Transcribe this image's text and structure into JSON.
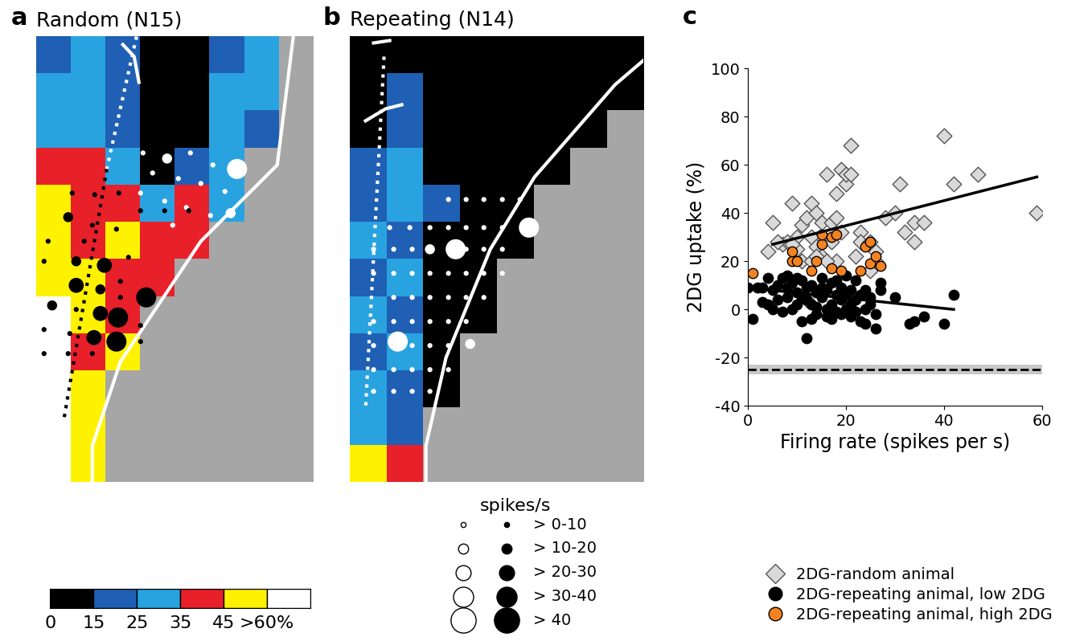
{
  "map_panels": [
    {
      "label": "a",
      "title": "Random (N15)",
      "xlim": [
        0,
        345
      ],
      "ylim": [
        555,
        0
      ],
      "tick_labels": false,
      "cells": [
        [
          20,
          30,
          20,
          5,
          5,
          20,
          25,
          null
        ],
        [
          25,
          30,
          20,
          5,
          5,
          25,
          30,
          null
        ],
        [
          30,
          25,
          20,
          5,
          5,
          30,
          20,
          null
        ],
        [
          40,
          35,
          25,
          10,
          20,
          30,
          null,
          null
        ],
        [
          45,
          40,
          35,
          30,
          35,
          30,
          null,
          null
        ],
        [
          50,
          40,
          45,
          40,
          35,
          null,
          null,
          null
        ],
        [
          55,
          45,
          40,
          38,
          null,
          null,
          null,
          null
        ],
        [
          60,
          45,
          40,
          null,
          null,
          null,
          null,
          null
        ],
        [
          65,
          40,
          45,
          null,
          null,
          null,
          null,
          null
        ],
        [
          60,
          50,
          null,
          null,
          null,
          null,
          null,
          null
        ],
        [
          65,
          45,
          null,
          null,
          null,
          null,
          null,
          null
        ],
        [
          70,
          45,
          null,
          null,
          null,
          null,
          null,
          null
        ]
      ],
      "dots_white": [
        [
          133,
          145,
          1
        ],
        [
          163,
          152,
          2
        ],
        [
          192,
          145,
          1
        ],
        [
          220,
          160,
          1
        ],
        [
          250,
          165,
          4
        ],
        [
          145,
          170,
          1
        ],
        [
          177,
          177,
          1
        ],
        [
          205,
          183,
          1
        ],
        [
          235,
          193,
          1
        ],
        [
          130,
          195,
          1
        ],
        [
          160,
          205,
          1
        ],
        [
          187,
          213,
          1
        ],
        [
          217,
          223,
          1
        ],
        [
          243,
          223,
          1
        ],
        [
          170,
          235,
          1
        ],
        [
          242,
          220,
          2
        ]
      ],
      "dots_black": [
        [
          45,
          195,
          1
        ],
        [
          73,
          197,
          1
        ],
        [
          103,
          195,
          1
        ],
        [
          130,
          217,
          1
        ],
        [
          160,
          217,
          1
        ],
        [
          190,
          217,
          1
        ],
        [
          40,
          225,
          2
        ],
        [
          70,
          235,
          1
        ],
        [
          100,
          240,
          1
        ],
        [
          15,
          255,
          1
        ],
        [
          60,
          255,
          1
        ],
        [
          85,
          285,
          3
        ],
        [
          115,
          275,
          1
        ],
        [
          10,
          280,
          1
        ],
        [
          50,
          280,
          2
        ],
        [
          50,
          310,
          3
        ],
        [
          80,
          315,
          2
        ],
        [
          105,
          305,
          1
        ],
        [
          20,
          335,
          2
        ],
        [
          50,
          340,
          1
        ],
        [
          80,
          345,
          3
        ],
        [
          105,
          325,
          1
        ],
        [
          137,
          325,
          4
        ],
        [
          10,
          365,
          1
        ],
        [
          42,
          370,
          1
        ],
        [
          72,
          375,
          3
        ],
        [
          102,
          350,
          4
        ],
        [
          100,
          380,
          4
        ],
        [
          130,
          360,
          1
        ],
        [
          10,
          395,
          1
        ],
        [
          40,
          395,
          1
        ],
        [
          70,
          395,
          1
        ],
        [
          130,
          380,
          1
        ]
      ],
      "borders": [
        {
          "points": [
            [
              320,
              0
            ],
            [
              300,
              160
            ],
            [
              205,
              255
            ],
            [
              105,
              405
            ],
            [
              70,
              510
            ],
            [
              70,
              555
            ]
          ],
          "color": "#ffffff",
          "line_style": "solid"
        },
        {
          "points": [
            [
              125,
              0
            ],
            [
              88,
              165
            ]
          ],
          "color": "#ffffff",
          "line_style": "dotted"
        },
        {
          "points": [
            [
              88,
              165
            ],
            [
              35,
              475
            ]
          ],
          "color": "#000000",
          "line_style": "dotted"
        },
        {
          "points": [
            [
              108,
              10
            ],
            [
              122,
              25
            ],
            [
              128,
              57
            ]
          ],
          "color": "#ffffff",
          "line_style": "solid"
        }
      ]
    },
    {
      "label": "b",
      "title": "Repeating (N14)",
      "xlim": [
        0,
        365
      ],
      "ylim": [
        555,
        0
      ],
      "tick_labels": false,
      "cells": [
        [
          5,
          5,
          5,
          5,
          5,
          5,
          5,
          5
        ],
        [
          5,
          20,
          5,
          5,
          5,
          5,
          5,
          5
        ],
        [
          5,
          20,
          5,
          5,
          5,
          5,
          5,
          null
        ],
        [
          20,
          25,
          5,
          5,
          5,
          5,
          null,
          null
        ],
        [
          20,
          28,
          20,
          5,
          5,
          null,
          null,
          null
        ],
        [
          25,
          20,
          5,
          5,
          5,
          null,
          null,
          null
        ],
        [
          20,
          28,
          5,
          5,
          null,
          null,
          null,
          null
        ],
        [
          25,
          20,
          5,
          5,
          null,
          null,
          null,
          null
        ],
        [
          20,
          25,
          5,
          null,
          null,
          null,
          null,
          null
        ],
        [
          28,
          20,
          5,
          null,
          null,
          null,
          null,
          null
        ],
        [
          30,
          20,
          null,
          null,
          null,
          null,
          null,
          null
        ],
        [
          45,
          40,
          null,
          null,
          null,
          null,
          null,
          null
        ]
      ],
      "dots_white": [
        [
          123,
          203,
          1
        ],
        [
          145,
          203,
          1
        ],
        [
          167,
          203,
          1
        ],
        [
          190,
          203,
          1
        ],
        [
          212,
          203,
          1
        ],
        [
          50,
          238,
          1
        ],
        [
          75,
          238,
          1
        ],
        [
          100,
          238,
          1
        ],
        [
          123,
          238,
          1
        ],
        [
          145,
          238,
          1
        ],
        [
          167,
          238,
          1
        ],
        [
          190,
          238,
          1
        ],
        [
          223,
          238,
          4
        ],
        [
          30,
          265,
          1
        ],
        [
          55,
          265,
          1
        ],
        [
          78,
          265,
          1
        ],
        [
          100,
          265,
          2
        ],
        [
          132,
          265,
          4
        ],
        [
          145,
          265,
          1
        ],
        [
          167,
          265,
          1
        ],
        [
          190,
          265,
          1
        ],
        [
          30,
          295,
          1
        ],
        [
          55,
          295,
          1
        ],
        [
          78,
          295,
          1
        ],
        [
          100,
          295,
          1
        ],
        [
          123,
          295,
          1
        ],
        [
          145,
          295,
          1
        ],
        [
          167,
          295,
          1
        ],
        [
          190,
          295,
          1
        ],
        [
          55,
          325,
          1
        ],
        [
          78,
          325,
          1
        ],
        [
          100,
          325,
          1
        ],
        [
          123,
          325,
          1
        ],
        [
          145,
          325,
          1
        ],
        [
          167,
          325,
          1
        ],
        [
          30,
          355,
          1
        ],
        [
          55,
          355,
          1
        ],
        [
          78,
          355,
          1
        ],
        [
          100,
          355,
          1
        ],
        [
          123,
          355,
          1
        ],
        [
          145,
          355,
          1
        ],
        [
          30,
          385,
          1
        ],
        [
          60,
          380,
          4
        ],
        [
          78,
          385,
          1
        ],
        [
          100,
          385,
          1
        ],
        [
          123,
          385,
          1
        ],
        [
          150,
          383,
          2
        ],
        [
          30,
          415,
          1
        ],
        [
          55,
          415,
          1
        ],
        [
          78,
          415,
          1
        ],
        [
          100,
          415,
          1
        ],
        [
          123,
          415,
          1
        ],
        [
          30,
          442,
          1
        ],
        [
          55,
          442,
          1
        ],
        [
          78,
          442,
          1
        ],
        [
          100,
          442,
          1
        ]
      ],
      "dots_black": [],
      "borders": [
        {
          "points": [
            [
              365,
              30
            ],
            [
              330,
              60
            ],
            [
              230,
              175
            ],
            [
              175,
              265
            ],
            [
              120,
              400
            ],
            [
              95,
              510
            ],
            [
              95,
              555
            ]
          ],
          "color": "#ffffff",
          "line_style": "solid"
        },
        {
          "points": [
            [
              43,
              25
            ],
            [
              20,
              465
            ]
          ],
          "color": "#ffffff",
          "line_style": "dotted"
        },
        {
          "points": [
            [
              30,
              8
            ],
            [
              50,
              5
            ]
          ],
          "color": "#ffffff",
          "line_style": "solid"
        },
        {
          "points": [
            [
              20,
              105
            ],
            [
              45,
              90
            ],
            [
              65,
              85
            ]
          ],
          "color": "#ffffff",
          "line_style": "solid"
        }
      ]
    }
  ],
  "colorbar": {
    "boundaries": [
      0,
      15,
      25,
      35,
      45,
      60
    ],
    "colors": [
      "#000000",
      "#1f5fb4",
      "#29a3e0",
      "#e8202a",
      "#fff200",
      "#ffffff"
    ],
    "ticks": [
      0,
      15,
      25,
      35,
      45,
      {
        "value": 60,
        "label": ">60%"
      }
    ]
  },
  "size_legend": {
    "title": "spikes/s",
    "labels": [
      "> 0-10",
      "> 10-20",
      "> 20-30",
      "> 30-40",
      "> 40"
    ]
  },
  "chart_data": {
    "type": "scatter",
    "label": "c",
    "xlabel": "Firing rate (spikes per s)",
    "ylabel": "2DG uptake (%)",
    "xlim": [
      0,
      60
    ],
    "ylim": [
      -40,
      100
    ],
    "xticks": [
      0,
      20,
      40,
      60
    ],
    "yticks": [
      -40,
      -20,
      0,
      20,
      40,
      60,
      80,
      100
    ],
    "legend": "below",
    "series": [
      {
        "name": "2DG-random animal",
        "color": "#d9d9d9",
        "marker": "diamond",
        "x": [
          4,
          5,
          7,
          8,
          9,
          10,
          10,
          11,
          12,
          13,
          13,
          14,
          14,
          15,
          15,
          16,
          17,
          17,
          18,
          18,
          19,
          19,
          20,
          20,
          21,
          21,
          23,
          23,
          25,
          25,
          26,
          28,
          30,
          31,
          32,
          34,
          34,
          36,
          40,
          42,
          47,
          59,
          12,
          11,
          9,
          6,
          13,
          14,
          16,
          18,
          22,
          26
        ],
        "y": [
          24,
          36,
          27,
          28,
          44,
          30,
          25,
          35,
          38,
          44,
          30,
          40,
          26,
          36,
          22,
          56,
          36,
          28,
          48,
          20,
          32,
          58,
          52,
          56,
          68,
          56,
          32,
          28,
          16,
          28,
          24,
          38,
          40,
          52,
          32,
          36,
          28,
          36,
          72,
          52,
          56,
          40,
          4,
          20,
          27,
          28,
          20,
          22,
          20,
          38,
          22,
          20
        ]
      },
      {
        "name": "2DG-repeating animal, low 2DG",
        "color": "#000000",
        "marker": "circle",
        "x": [
          0,
          1,
          2,
          3,
          4,
          5,
          5,
          6,
          6,
          7,
          7,
          8,
          8,
          8,
          9,
          9,
          10,
          10,
          10,
          11,
          11,
          11,
          12,
          12,
          12,
          13,
          13,
          13,
          14,
          14,
          14,
          15,
          15,
          15,
          16,
          16,
          16,
          17,
          17,
          17,
          18,
          18,
          18,
          19,
          19,
          19,
          20,
          20,
          20,
          21,
          21,
          21,
          22,
          22,
          22,
          23,
          23,
          24,
          24,
          24,
          25,
          25,
          26,
          26,
          27,
          27,
          30,
          33,
          34,
          36,
          40,
          42,
          4,
          3
        ],
        "y": [
          9,
          -4,
          9,
          9,
          2,
          0,
          8,
          10,
          4,
          -1,
          13,
          14,
          9,
          5,
          11,
          0,
          2,
          7,
          13,
          5,
          -5,
          12,
          -12,
          4,
          9,
          -4,
          10,
          2,
          -2,
          7,
          1,
          5,
          13,
          9,
          -3,
          0,
          8,
          2,
          11,
          -4,
          6,
          -1,
          12,
          4,
          9,
          -2,
          6,
          0,
          14,
          -3,
          8,
          2,
          4,
          -1,
          12,
          6,
          -5,
          8,
          0,
          -6,
          2,
          5,
          -8,
          -2,
          11,
          8,
          5,
          -6,
          -5,
          -3,
          -6,
          6,
          13,
          3
        ]
      },
      {
        "name": "2DG-repeating animal, high 2DG",
        "color": "#f58220",
        "marker": "circle",
        "x": [
          1,
          9,
          9,
          10,
          13,
          14,
          15,
          15,
          17,
          17,
          18,
          19,
          23,
          24,
          25,
          25,
          26,
          27
        ],
        "y": [
          15,
          20,
          24,
          20,
          16,
          20,
          27,
          31,
          17,
          30,
          31,
          16,
          16,
          26,
          19,
          28,
          22,
          18
        ]
      }
    ],
    "lines": [
      {
        "x": [
          5,
          59
        ],
        "y": [
          27,
          55
        ],
        "color": "#000000",
        "line_style": "solid"
      },
      {
        "x": [
          0,
          42
        ],
        "y": [
          9,
          0
        ],
        "color": "#000000",
        "line_style": "solid"
      }
    ],
    "reference": {
      "y": -25,
      "band": [
        -27,
        -23
      ],
      "line_style": "dashed"
    }
  }
}
